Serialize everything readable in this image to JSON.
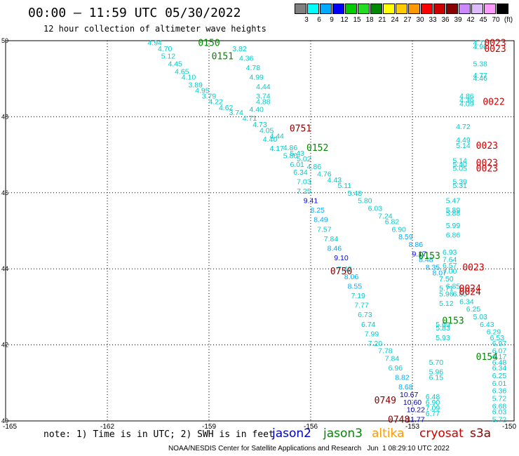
{
  "title": "00:00 – 11:59 UTC 05/30/2022",
  "subtitle": "12 hour collection of altimeter wave heights",
  "legend": {
    "colors": [
      "#808080",
      "#00ffff",
      "#00aaff",
      "#0000ff",
      "#00cc00",
      "#22dd22",
      "#008800",
      "#ffff00",
      "#ffcc00",
      "#ff9900",
      "#ff0000",
      "#cc0000",
      "#880000",
      "#cc88ff",
      "#ddbbff",
      "#ff99ff",
      "#000000"
    ],
    "labels": [
      "3",
      "6",
      "9",
      "12",
      "15",
      "18",
      "21",
      "24",
      "27",
      "30",
      "33",
      "36",
      "39",
      "42",
      "45",
      "70",
      "(ft)"
    ]
  },
  "axes": {
    "x_ticks": [
      "-165",
      "-162",
      "-159",
      "-156",
      "-153",
      "-150"
    ],
    "y_ticks": [
      "50",
      "48",
      "46",
      "44",
      "42",
      "40"
    ]
  },
  "note": "note: 1) Time is in UTC; 2) SWH is in feet",
  "satellites": [
    {
      "name": "jason2",
      "color": "#0000cc"
    },
    {
      "name": "jason3",
      "color": "#008800"
    },
    {
      "name": "altika",
      "color": "#ff9900"
    },
    {
      "name": "cryosat",
      "color": "#cc0000"
    },
    {
      "name": "s3a",
      "color": "#880000"
    }
  ],
  "footer": "NOAA/NESDIS Center for Satellite Applications and Research   Jun  1 08:29:10 UTC 2022",
  "chart_data": {
    "type": "scatter",
    "xlim": [
      -165,
      -150
    ],
    "ylim": [
      40,
      50
    ],
    "time_labels": [
      {
        "text": "0150",
        "lon": -159.0,
        "lat": 49.95,
        "color": "#008800"
      },
      {
        "text": "0151",
        "lon": -158.6,
        "lat": 49.6,
        "color": "#008800"
      },
      {
        "text": "0751",
        "lon": -156.3,
        "lat": 47.7,
        "color": "#880000"
      },
      {
        "text": "0152",
        "lon": -155.8,
        "lat": 47.2,
        "color": "#008800"
      },
      {
        "text": "0750",
        "lon": -155.1,
        "lat": 43.95,
        "color": "#880000"
      },
      {
        "text": "0153",
        "lon": -152.5,
        "lat": 44.35,
        "color": "#008800"
      },
      {
        "text": "0153",
        "lon": -151.8,
        "lat": 42.65,
        "color": "#008800"
      },
      {
        "text": "0154",
        "lon": -150.8,
        "lat": 41.7,
        "color": "#008800"
      },
      {
        "text": "0749",
        "lon": -153.8,
        "lat": 40.55,
        "color": "#880000"
      },
      {
        "text": "0748",
        "lon": -153.4,
        "lat": 40.05,
        "color": "#880000"
      },
      {
        "text": "0023",
        "lon": -149.9,
        "lat": 49.95,
        "color": "#cc0000"
      },
      {
        "text": "0023",
        "lon": -149.9,
        "lat": 49.8,
        "color": "#cc0000"
      },
      {
        "text": "0022",
        "lon": -150.6,
        "lat": 48.4,
        "color": "#cc0000"
      },
      {
        "text": "0023",
        "lon": -150.8,
        "lat": 47.25,
        "color": "#cc0000"
      },
      {
        "text": "0023",
        "lon": -150.8,
        "lat": 46.8,
        "color": "#cc0000"
      },
      {
        "text": "0023",
        "lon": -150.8,
        "lat": 46.65,
        "color": "#cc0000"
      },
      {
        "text": "0023",
        "lon": -151.2,
        "lat": 44.05,
        "color": "#cc0000"
      },
      {
        "text": "0024",
        "lon": -151.3,
        "lat": 43.5,
        "color": "#cc0000"
      },
      {
        "text": "0024",
        "lon": -151.3,
        "lat": 43.4,
        "color": "#cc0000"
      }
    ],
    "points": [
      {
        "v": "4.94",
        "lon": -160.6,
        "lat": 49.95,
        "c": "#00cccc"
      },
      {
        "v": "4.70",
        "lon": -160.3,
        "lat": 49.8,
        "c": "#00cccc"
      },
      {
        "v": "3.82",
        "lon": -158.1,
        "lat": 49.8,
        "c": "#00cccc"
      },
      {
        "v": "5.12",
        "lon": -160.2,
        "lat": 49.6,
        "c": "#00cccc"
      },
      {
        "v": "4.36",
        "lon": -157.9,
        "lat": 49.55,
        "c": "#00cccc"
      },
      {
        "v": "4.45",
        "lon": -160.0,
        "lat": 49.4,
        "c": "#00cccc"
      },
      {
        "v": "4.65",
        "lon": -159.8,
        "lat": 49.2,
        "c": "#00cccc"
      },
      {
        "v": "4.78",
        "lon": -157.7,
        "lat": 49.3,
        "c": "#00cccc"
      },
      {
        "v": "4.10",
        "lon": -159.6,
        "lat": 49.05,
        "c": "#00cccc"
      },
      {
        "v": "4.99",
        "lon": -157.6,
        "lat": 49.05,
        "c": "#00cccc"
      },
      {
        "v": "3.89",
        "lon": -159.4,
        "lat": 48.85,
        "c": "#00cccc"
      },
      {
        "v": "4.44",
        "lon": -157.4,
        "lat": 48.8,
        "c": "#00cccc"
      },
      {
        "v": "4.95",
        "lon": -159.2,
        "lat": 48.7,
        "c": "#00cccc"
      },
      {
        "v": "3.79",
        "lon": -159.0,
        "lat": 48.55,
        "c": "#00cccc"
      },
      {
        "v": "3.74",
        "lon": -157.4,
        "lat": 48.55,
        "c": "#00cccc"
      },
      {
        "v": "4.22",
        "lon": -158.8,
        "lat": 48.4,
        "c": "#00cccc"
      },
      {
        "v": "4.88",
        "lon": -157.4,
        "lat": 48.4,
        "c": "#00cccc"
      },
      {
        "v": "4.62",
        "lon": -158.5,
        "lat": 48.25,
        "c": "#00cccc"
      },
      {
        "v": "4.40",
        "lon": -157.6,
        "lat": 48.2,
        "c": "#00cccc"
      },
      {
        "v": "3.74",
        "lon": -158.2,
        "lat": 48.12,
        "c": "#00cccc"
      },
      {
        "v": "4.71",
        "lon": -157.8,
        "lat": 47.97,
        "c": "#00cccc"
      },
      {
        "v": "4.73",
        "lon": -157.5,
        "lat": 47.8,
        "c": "#00cccc"
      },
      {
        "v": "4.05",
        "lon": -157.3,
        "lat": 47.65,
        "c": "#00cccc"
      },
      {
        "v": "4.44",
        "lon": -157.0,
        "lat": 47.5,
        "c": "#00cccc"
      },
      {
        "v": "4.40",
        "lon": -157.2,
        "lat": 47.42,
        "c": "#00cccc"
      },
      {
        "v": "4.86",
        "lon": -156.6,
        "lat": 47.2,
        "c": "#00cccc"
      },
      {
        "v": "4.17",
        "lon": -157.0,
        "lat": 47.18,
        "c": "#00cccc"
      },
      {
        "v": "5.43",
        "lon": -156.4,
        "lat": 47.05,
        "c": "#00cccc"
      },
      {
        "v": "5.80",
        "lon": -156.6,
        "lat": 46.98,
        "c": "#00cccc"
      },
      {
        "v": "5.02",
        "lon": -156.2,
        "lat": 46.9,
        "c": "#00cccc"
      },
      {
        "v": "6.01",
        "lon": -156.4,
        "lat": 46.75,
        "c": "#00cccc"
      },
      {
        "v": "4.86",
        "lon": -155.9,
        "lat": 46.7,
        "c": "#00cccc"
      },
      {
        "v": "6.34",
        "lon": -156.3,
        "lat": 46.55,
        "c": "#00cccc"
      },
      {
        "v": "4.76",
        "lon": -155.6,
        "lat": 46.5,
        "c": "#00cccc"
      },
      {
        "v": "4.43",
        "lon": -155.3,
        "lat": 46.35,
        "c": "#00cccc"
      },
      {
        "v": "7.03",
        "lon": -156.2,
        "lat": 46.3,
        "c": "#00cccc"
      },
      {
        "v": "5.11",
        "lon": -155.0,
        "lat": 46.2,
        "c": "#00cccc"
      },
      {
        "v": "7.25",
        "lon": -156.2,
        "lat": 46.05,
        "c": "#00cccc"
      },
      {
        "v": "5.48",
        "lon": -154.7,
        "lat": 46.0,
        "c": "#00cccc"
      },
      {
        "v": "9.41",
        "lon": -156.0,
        "lat": 45.8,
        "c": "#0000ff"
      },
      {
        "v": "5.80",
        "lon": -154.4,
        "lat": 45.8,
        "c": "#00cccc"
      },
      {
        "v": "6.03",
        "lon": -154.1,
        "lat": 45.6,
        "c": "#00cccc"
      },
      {
        "v": "8.25",
        "lon": -155.8,
        "lat": 45.55,
        "c": "#00aaff"
      },
      {
        "v": "7.24",
        "lon": -153.8,
        "lat": 45.4,
        "c": "#00cccc"
      },
      {
        "v": "8.49",
        "lon": -155.7,
        "lat": 45.3,
        "c": "#00aaff"
      },
      {
        "v": "6.82",
        "lon": -153.6,
        "lat": 45.25,
        "c": "#00cccc"
      },
      {
        "v": "7.57",
        "lon": -155.6,
        "lat": 45.05,
        "c": "#00cccc"
      },
      {
        "v": "6.90",
        "lon": -153.4,
        "lat": 45.05,
        "c": "#00cccc"
      },
      {
        "v": "7.84",
        "lon": -155.4,
        "lat": 44.8,
        "c": "#00cccc"
      },
      {
        "v": "8.59",
        "lon": -153.2,
        "lat": 44.85,
        "c": "#00aaff"
      },
      {
        "v": "8.46",
        "lon": -155.3,
        "lat": 44.55,
        "c": "#00aaff"
      },
      {
        "v": "8.86",
        "lon": -152.9,
        "lat": 44.65,
        "c": "#00aaff"
      },
      {
        "v": "9.17",
        "lon": -152.8,
        "lat": 44.4,
        "c": "#0000ff"
      },
      {
        "v": "9.10",
        "lon": -155.1,
        "lat": 44.3,
        "c": "#0000ff"
      },
      {
        "v": "8.48",
        "lon": -152.6,
        "lat": 44.25,
        "c": "#00aaff"
      },
      {
        "v": "7.42",
        "lon": -155.0,
        "lat": 44.0,
        "c": "#00cccc"
      },
      {
        "v": "8.35",
        "lon": -152.4,
        "lat": 44.05,
        "c": "#00aaff"
      },
      {
        "v": "8.07",
        "lon": -152.2,
        "lat": 43.9,
        "c": "#00aaff"
      },
      {
        "v": "8.06",
        "lon": -154.8,
        "lat": 43.8,
        "c": "#00aaff"
      },
      {
        "v": "7.50",
        "lon": -152.0,
        "lat": 43.75,
        "c": "#00cccc"
      },
      {
        "v": "8.55",
        "lon": -154.7,
        "lat": 43.55,
        "c": "#00aaff"
      },
      {
        "v": "6.85",
        "lon": -151.8,
        "lat": 43.55,
        "c": "#00cccc"
      },
      {
        "v": "7.19",
        "lon": -154.6,
        "lat": 43.3,
        "c": "#00cccc"
      },
      {
        "v": "6.80",
        "lon": -151.6,
        "lat": 43.35,
        "c": "#00cccc"
      },
      {
        "v": "6.34",
        "lon": -151.4,
        "lat": 43.15,
        "c": "#00cccc"
      },
      {
        "v": "7.77",
        "lon": -154.5,
        "lat": 43.05,
        "c": "#00cccc"
      },
      {
        "v": "6.25",
        "lon": -151.2,
        "lat": 42.95,
        "c": "#00cccc"
      },
      {
        "v": "6.73",
        "lon": -154.4,
        "lat": 42.8,
        "c": "#00cccc"
      },
      {
        "v": "5.03",
        "lon": -151.0,
        "lat": 42.75,
        "c": "#00cccc"
      },
      {
        "v": "6.74",
        "lon": -154.3,
        "lat": 42.55,
        "c": "#00cccc"
      },
      {
        "v": "6.43",
        "lon": -150.8,
        "lat": 42.55,
        "c": "#00cccc"
      },
      {
        "v": "6.29",
        "lon": -150.6,
        "lat": 42.35,
        "c": "#00cccc"
      },
      {
        "v": "7.99",
        "lon": -154.2,
        "lat": 42.3,
        "c": "#00cccc"
      },
      {
        "v": "6.53",
        "lon": -150.5,
        "lat": 42.2,
        "c": "#00cccc"
      },
      {
        "v": "7.20",
        "lon": -154.1,
        "lat": 42.05,
        "c": "#00cccc"
      },
      {
        "v": "6.97",
        "lon": -150.3,
        "lat": 42.05,
        "c": "#00cccc"
      },
      {
        "v": "6.07",
        "lon": -150.1,
        "lat": 41.85,
        "c": "#00cccc"
      },
      {
        "v": "7.78",
        "lon": -153.8,
        "lat": 41.85,
        "c": "#00cccc"
      },
      {
        "v": "7.84",
        "lon": -153.6,
        "lat": 41.65,
        "c": "#00cccc"
      },
      {
        "v": "6.17",
        "lon": -150.0,
        "lat": 41.7,
        "c": "#00cccc"
      },
      {
        "v": "6.48",
        "lon": -149.8,
        "lat": 41.55,
        "c": "#00cccc"
      },
      {
        "v": "6.96",
        "lon": -153.5,
        "lat": 41.4,
        "c": "#00cccc"
      },
      {
        "v": "6.34",
        "lon": -149.6,
        "lat": 41.4,
        "c": "#00cccc"
      },
      {
        "v": "6.25",
        "lon": -149.4,
        "lat": 41.2,
        "c": "#00cccc"
      },
      {
        "v": "8.82",
        "lon": -153.3,
        "lat": 41.15,
        "c": "#00aaff"
      },
      {
        "v": "6.01",
        "lon": -149.2,
        "lat": 41.0,
        "c": "#00cccc"
      },
      {
        "v": "8.68",
        "lon": -153.2,
        "lat": 40.9,
        "c": "#00aaff"
      },
      {
        "v": "6.36",
        "lon": -148.9,
        "lat": 40.8,
        "c": "#00cccc"
      },
      {
        "v": "10.67",
        "lon": -153.1,
        "lat": 40.7,
        "c": "#0000aa"
      },
      {
        "v": "5.72",
        "lon": -148.7,
        "lat": 40.6,
        "c": "#00cccc"
      },
      {
        "v": "10.60",
        "lon": -153.0,
        "lat": 40.5,
        "c": "#0000aa"
      },
      {
        "v": "6.68",
        "lon": -148.5,
        "lat": 40.4,
        "c": "#00cccc"
      },
      {
        "v": "10.22",
        "lon": -152.9,
        "lat": 40.3,
        "c": "#0000aa"
      },
      {
        "v": "6.03",
        "lon": -148.3,
        "lat": 40.25,
        "c": "#00cccc"
      },
      {
        "v": "11.77",
        "lon": -152.9,
        "lat": 40.05,
        "c": "#0000aa"
      },
      {
        "v": "5.72",
        "lon": -148.1,
        "lat": 40.05,
        "c": "#00cccc"
      },
      {
        "v": "4.77",
        "lon": -151.0,
        "lat": 49.95,
        "c": "#00cccc"
      },
      {
        "v": "4.98",
        "lon": -151.0,
        "lat": 49.85,
        "c": "#00cccc"
      },
      {
        "v": "5.38",
        "lon": -151.0,
        "lat": 49.4,
        "c": "#00cccc"
      },
      {
        "v": "4.77",
        "lon": -151.0,
        "lat": 49.1,
        "c": "#00cccc"
      },
      {
        "v": "4.46",
        "lon": -151.0,
        "lat": 49.02,
        "c": "#00cccc"
      },
      {
        "v": "4.86",
        "lon": -151.4,
        "lat": 48.55,
        "c": "#00cccc"
      },
      {
        "v": "4.36",
        "lon": -151.4,
        "lat": 48.45,
        "c": "#00cccc"
      },
      {
        "v": "4.09",
        "lon": -151.4,
        "lat": 48.35,
        "c": "#00cccc"
      },
      {
        "v": "4.72",
        "lon": -151.5,
        "lat": 47.75,
        "c": "#00cccc"
      },
      {
        "v": "4.49",
        "lon": -151.5,
        "lat": 47.4,
        "c": "#00cccc"
      },
      {
        "v": "5.14",
        "lon": -151.5,
        "lat": 47.25,
        "c": "#00cccc"
      },
      {
        "v": "5.14",
        "lon": -151.6,
        "lat": 46.85,
        "c": "#00cccc"
      },
      {
        "v": "5.40",
        "lon": -151.6,
        "lat": 46.75,
        "c": "#00cccc"
      },
      {
        "v": "5.05",
        "lon": -151.6,
        "lat": 46.65,
        "c": "#00cccc"
      },
      {
        "v": "5.39",
        "lon": -151.6,
        "lat": 46.3,
        "c": "#00cccc"
      },
      {
        "v": "5.31",
        "lon": -151.6,
        "lat": 46.2,
        "c": "#00cccc"
      },
      {
        "v": "5.47",
        "lon": -151.8,
        "lat": 45.8,
        "c": "#00cccc"
      },
      {
        "v": "5.89",
        "lon": -151.8,
        "lat": 45.55,
        "c": "#00cccc"
      },
      {
        "v": "5.88",
        "lon": -151.8,
        "lat": 45.47,
        "c": "#00cccc"
      },
      {
        "v": "5.99",
        "lon": -151.8,
        "lat": 45.15,
        "c": "#00cccc"
      },
      {
        "v": "6.86",
        "lon": -151.8,
        "lat": 44.9,
        "c": "#00cccc"
      },
      {
        "v": "6.93",
        "lon": -151.9,
        "lat": 44.45,
        "c": "#00cccc"
      },
      {
        "v": "7.64",
        "lon": -151.9,
        "lat": 44.25,
        "c": "#00cccc"
      },
      {
        "v": "6.57",
        "lon": -151.9,
        "lat": 44.1,
        "c": "#00cccc"
      },
      {
        "v": "7.00",
        "lon": -151.9,
        "lat": 43.95,
        "c": "#00cccc"
      },
      {
        "v": "5.71",
        "lon": -152.0,
        "lat": 43.5,
        "c": "#00cccc"
      },
      {
        "v": "5.96",
        "lon": -152.0,
        "lat": 43.35,
        "c": "#00cccc"
      },
      {
        "v": "5.12",
        "lon": -152.0,
        "lat": 43.1,
        "c": "#00cccc"
      },
      {
        "v": "5.65",
        "lon": -152.1,
        "lat": 42.55,
        "c": "#00cccc"
      },
      {
        "v": "5.83",
        "lon": -152.1,
        "lat": 42.45,
        "c": "#00cccc"
      },
      {
        "v": "5.93",
        "lon": -152.1,
        "lat": 42.2,
        "c": "#00cccc"
      },
      {
        "v": "5.70",
        "lon": -152.3,
        "lat": 41.55,
        "c": "#00cccc"
      },
      {
        "v": "5.96",
        "lon": -152.3,
        "lat": 41.3,
        "c": "#00cccc"
      },
      {
        "v": "6.15",
        "lon": -152.3,
        "lat": 41.15,
        "c": "#00cccc"
      },
      {
        "v": "6.48",
        "lon": -152.4,
        "lat": 40.65,
        "c": "#00cccc"
      },
      {
        "v": "6.90",
        "lon": -152.4,
        "lat": 40.5,
        "c": "#00cccc"
      },
      {
        "v": "7.09",
        "lon": -152.4,
        "lat": 40.35,
        "c": "#00cccc"
      },
      {
        "v": "6.77",
        "lon": -152.4,
        "lat": 40.2,
        "c": "#00cccc"
      }
    ]
  }
}
